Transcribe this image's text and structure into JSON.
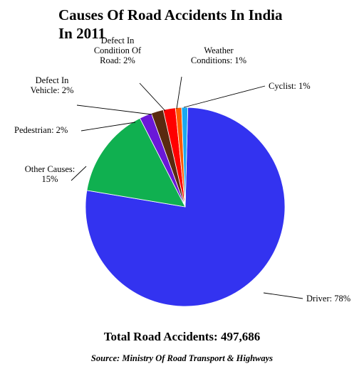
{
  "chart_data": {
    "type": "pie",
    "title_lines": [
      "Causes Of Road Accidents In India",
      "In 2011"
    ],
    "categories": [
      "Driver",
      "Other Causes",
      "Pedestrian",
      "Defect In Vehicle",
      "Defect In Condition Of Road",
      "Weather Conditions",
      "Cyclist"
    ],
    "values": [
      78,
      15,
      2,
      2,
      2,
      1,
      1
    ],
    "colors": [
      "#3333f0",
      "#10b050",
      "#6a18d8",
      "#5a2a10",
      "#ff0000",
      "#ff5a00",
      "#1aa8f0"
    ],
    "labels": [
      [
        "Driver: 78%"
      ],
      [
        "Other Causes:",
        "15%"
      ],
      [
        "Pedestrian: 2%"
      ],
      [
        "Defect In",
        "Vehicle: 2%"
      ],
      [
        "Defect In",
        "Condition Of",
        "Road: 2%"
      ],
      [
        "Weather",
        "Conditions: 1%"
      ],
      [
        "Cyclist: 1%"
      ]
    ],
    "legend": "none",
    "grid": false
  },
  "footer": {
    "total": "Total Road Accidents: 497,686",
    "source": "Source: Ministry Of Road Transport & Highways"
  }
}
